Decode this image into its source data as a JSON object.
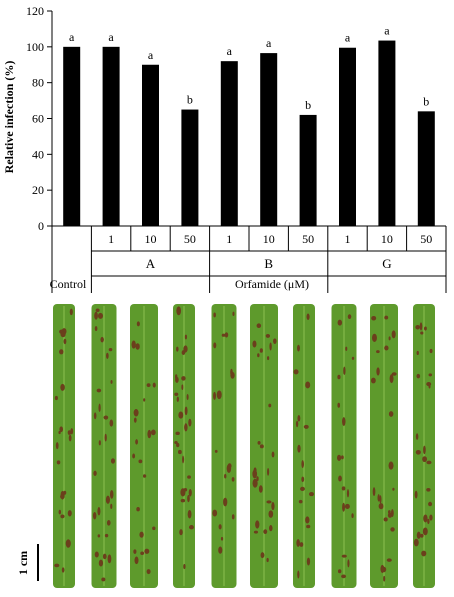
{
  "chart_data": {
    "type": "bar",
    "categories": [
      "Control",
      "1",
      "10",
      "50",
      "1",
      "10",
      "50",
      "1",
      "10",
      "50"
    ],
    "values": [
      100,
      100,
      90,
      65,
      92,
      96.5,
      62,
      99.5,
      103.5,
      64
    ],
    "significance_letters": [
      "a",
      "a",
      "a",
      "b",
      "a",
      "a",
      "b",
      "a",
      "a",
      "b"
    ],
    "groups": [
      "A",
      "B",
      "G"
    ],
    "control_label": "Control",
    "xlabel": "Orfamide (μM)",
    "ylabel": "Relative infection (%)",
    "ylim": [
      0,
      120
    ],
    "yticks": [
      0,
      20,
      40,
      60,
      80,
      100,
      120
    ],
    "grid": false,
    "bar_color": "#000000"
  },
  "photo": {
    "scale_bar_label": "1 cm",
    "leaf_count": 10,
    "leaf_color": "#5e9a2c",
    "lesion_color": "#6b3f1c"
  }
}
